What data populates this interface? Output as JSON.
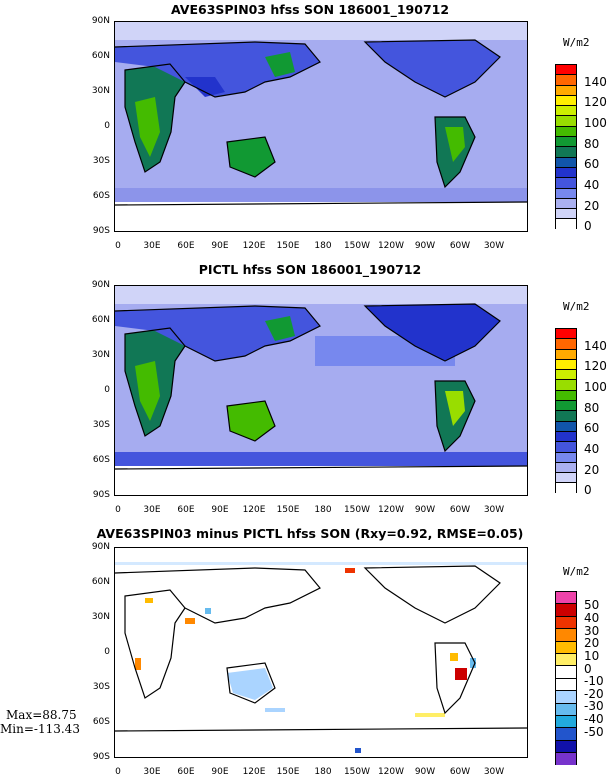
{
  "panels": [
    {
      "title": "AVE63SPIN03 hfss SON 186001_190712",
      "unit": "W/m2",
      "colorbar_labels": [
        "140",
        "120",
        "100",
        "80",
        "60",
        "40",
        "20",
        "0"
      ],
      "colorbar_colors": [
        "#ff0000",
        "#ff6600",
        "#ffaa00",
        "#ffee00",
        "#ccee00",
        "#99dd00",
        "#44bb00",
        "#119933",
        "#117755",
        "#1155aa",
        "#2233cc",
        "#4455dd",
        "#7788ee",
        "#aab0f0",
        "#d0d4f8",
        "#ffffff"
      ]
    },
    {
      "title": "PICTL hfss SON 186001_190712",
      "unit": "W/m2",
      "colorbar_labels": [
        "140",
        "120",
        "100",
        "80",
        "60",
        "40",
        "20",
        "0"
      ],
      "colorbar_colors": [
        "#ff0000",
        "#ff6600",
        "#ffaa00",
        "#ffee00",
        "#ccee00",
        "#99dd00",
        "#44bb00",
        "#119933",
        "#117755",
        "#1155aa",
        "#2233cc",
        "#4455dd",
        "#7788ee",
        "#aab0f0",
        "#d0d4f8",
        "#ffffff"
      ]
    },
    {
      "title": "AVE63SPIN03 minus PICTL hfss SON (Rxy=0.92, RMSE=0.05)",
      "unit": "W/m2",
      "colorbar_labels": [
        "50",
        "40",
        "30",
        "20",
        "10",
        "0",
        "-10",
        "-20",
        "-30",
        "-40",
        "-50"
      ],
      "colorbar_colors": [
        "#ee44aa",
        "#cc0000",
        "#ee3300",
        "#ff8800",
        "#ffbb00",
        "#ffee66",
        "#ffffff",
        "#ffffff",
        "#aad4ff",
        "#66bbee",
        "#22aadd",
        "#2255cc",
        "#1111aa",
        "#7733cc"
      ]
    }
  ],
  "lat_labels": [
    "90N",
    "60N",
    "30N",
    "0",
    "30S",
    "60S",
    "90S"
  ],
  "lon_labels": [
    "0",
    "30E",
    "60E",
    "90E",
    "120E",
    "150E",
    "180",
    "150W",
    "120W",
    "90W",
    "60W",
    "30W"
  ],
  "stats": {
    "max": "Max=88.75",
    "min": "Min=-113.43"
  }
}
